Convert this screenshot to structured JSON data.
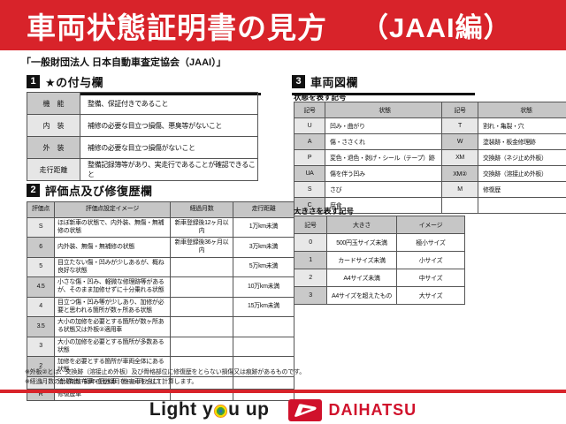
{
  "colors": {
    "accent_red": "#d8232a",
    "brand_red": "#d0112b",
    "table_header_gray": "#c6c6c6"
  },
  "banner": {
    "title": "車両状態証明書の見方",
    "edition": "（JAAI編）"
  },
  "subtitle": "「一般財団法人 日本自動車査定協会（JAAI）」",
  "section1": {
    "number": "1",
    "title": "★の付与欄",
    "rows": [
      [
        "機　能",
        "整備、保証付きであること"
      ],
      [
        "内　装",
        "補修の必要な目立つ損傷、悪臭等がないこと"
      ],
      [
        "外　装",
        "補修の必要な目立つ損傷がないこと"
      ],
      [
        "走行距離",
        "整備記録簿等があり、実走行であることが確認できること"
      ]
    ]
  },
  "section2": {
    "number": "2",
    "title": "評価点及び修復歴欄",
    "headers": [
      "評価点",
      "評価点設定イメージ",
      "経過月数",
      "走行距離"
    ],
    "rows": [
      [
        "S",
        "ほぼ新車の状態で、内外装、無傷・無補修の状態",
        "新車登録後12ヶ月以内",
        "1万km未満"
      ],
      [
        "6",
        "内外装、無傷・無補修の状態",
        "新車登録後36ヶ月以内",
        "3万km未満"
      ],
      [
        "5",
        "目立たない傷・凹みが少しあるが、概ね良好な状態",
        "",
        "5万km未満"
      ],
      [
        "4.5",
        "小さな傷・凹み、軽微な修理跡等があるが、そのまま加修せずに十分乗れる状態",
        "",
        "10万km未満"
      ],
      [
        "4",
        "目立つ傷・凹み等が少しあり、加修が必要と思われる箇所が数ヶ所ある状態",
        "",
        "15万km未満"
      ],
      [
        "3.5",
        "大小の加修を必要とする箇所が数ヶ所ある状態又は外板②適用車",
        "",
        ""
      ],
      [
        "3",
        "大小の加修を必要とする箇所が多数ある状態",
        "",
        ""
      ],
      [
        "2",
        "加修を必要とする箇所が車両全体にある状態",
        "",
        ""
      ],
      [
        "1",
        "消火剤散布車・冠水車（塩害車を含む）",
        "",
        ""
      ],
      [
        "R",
        "修復歴車",
        "",
        ""
      ]
    ]
  },
  "section3": {
    "number": "3",
    "title": "車両図欄",
    "state_table": {
      "label": "状態を表す記号",
      "headers": [
        "記号",
        "状態",
        "記号",
        "状態"
      ],
      "rows": [
        [
          "U",
          "凹み・曲がり",
          "T",
          "割れ・亀裂・穴"
        ],
        [
          "A",
          "傷・ささくれ",
          "W",
          "塗装跡・板金修理跡"
        ],
        [
          "P",
          "変色・退色・剥げ・シール（テープ）跡",
          "XM",
          "交換跡（ネジ止め外板）"
        ],
        [
          "UA",
          "傷を伴う凹み",
          "XM②",
          "交換跡（溶接止め外板）"
        ],
        [
          "S",
          "さび",
          "M",
          "修復歴"
        ],
        [
          "C",
          "腐食",
          "",
          ""
        ]
      ]
    },
    "size_table": {
      "label": "大きさを表す記号",
      "headers": [
        "記号",
        "大きさ",
        "イメージ"
      ],
      "rows": [
        [
          "0",
          "500円玉サイズ未満",
          "極小サイズ"
        ],
        [
          "1",
          "カードサイズ未満",
          "小サイズ"
        ],
        [
          "2",
          "A4サイズ未満",
          "中サイズ"
        ],
        [
          "3",
          "A4サイズを超えたもの",
          "大サイズ"
        ]
      ]
    }
  },
  "notes": [
    "※外板②とは、交換跡（溶接止め外板）及び骨格部位に修復歴をとらない損傷又は痕跡があるものです。",
    "※経過月数の計算は、初年度登録月を一ヶ月として計算します。"
  ],
  "footer": {
    "slogan_left": "Light y",
    "slogan_right": "u up",
    "brand": "DAIHATSU"
  }
}
